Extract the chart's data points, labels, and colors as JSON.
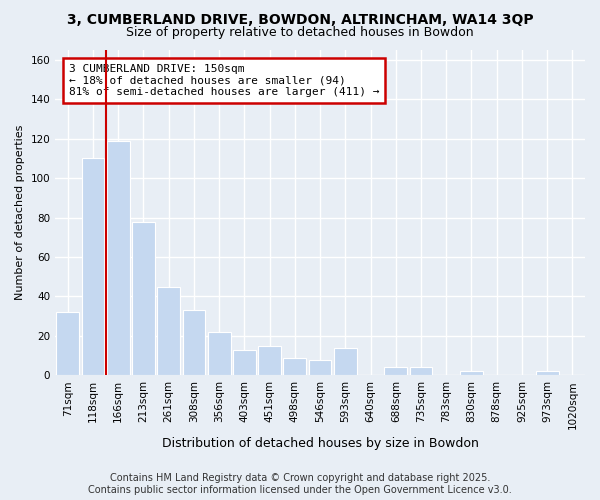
{
  "title": "3, CUMBERLAND DRIVE, BOWDON, ALTRINCHAM, WA14 3QP",
  "subtitle": "Size of property relative to detached houses in Bowdon",
  "xlabel": "Distribution of detached houses by size in Bowdon",
  "ylabel": "Number of detached properties",
  "categories": [
    "71sqm",
    "118sqm",
    "166sqm",
    "213sqm",
    "261sqm",
    "308sqm",
    "356sqm",
    "403sqm",
    "451sqm",
    "498sqm",
    "546sqm",
    "593sqm",
    "640sqm",
    "688sqm",
    "735sqm",
    "783sqm",
    "830sqm",
    "878sqm",
    "925sqm",
    "973sqm",
    "1020sqm"
  ],
  "values": [
    32,
    110,
    119,
    78,
    45,
    33,
    22,
    13,
    15,
    9,
    8,
    14,
    0,
    4,
    4,
    0,
    2,
    0,
    0,
    2,
    0
  ],
  "bar_color": "#c5d8f0",
  "bar_edge_color": "#ffffff",
  "property_line_x": 1.5,
  "annotation_text": "3 CUMBERLAND DRIVE: 150sqm\n← 18% of detached houses are smaller (94)\n81% of semi-detached houses are larger (411) →",
  "annotation_box_color": "white",
  "annotation_box_edge": "#cc0000",
  "line_color": "#cc0000",
  "footer_line1": "Contains HM Land Registry data © Crown copyright and database right 2025.",
  "footer_line2": "Contains public sector information licensed under the Open Government Licence v3.0.",
  "bg_color": "#e8eef5",
  "plot_bg_color": "#e8eef5",
  "grid_color": "#ffffff",
  "ylim": [
    0,
    165
  ],
  "title_fontsize": 10,
  "subtitle_fontsize": 9,
  "xlabel_fontsize": 9,
  "ylabel_fontsize": 8,
  "tick_fontsize": 7.5,
  "footer_fontsize": 7,
  "annotation_fontsize": 8
}
